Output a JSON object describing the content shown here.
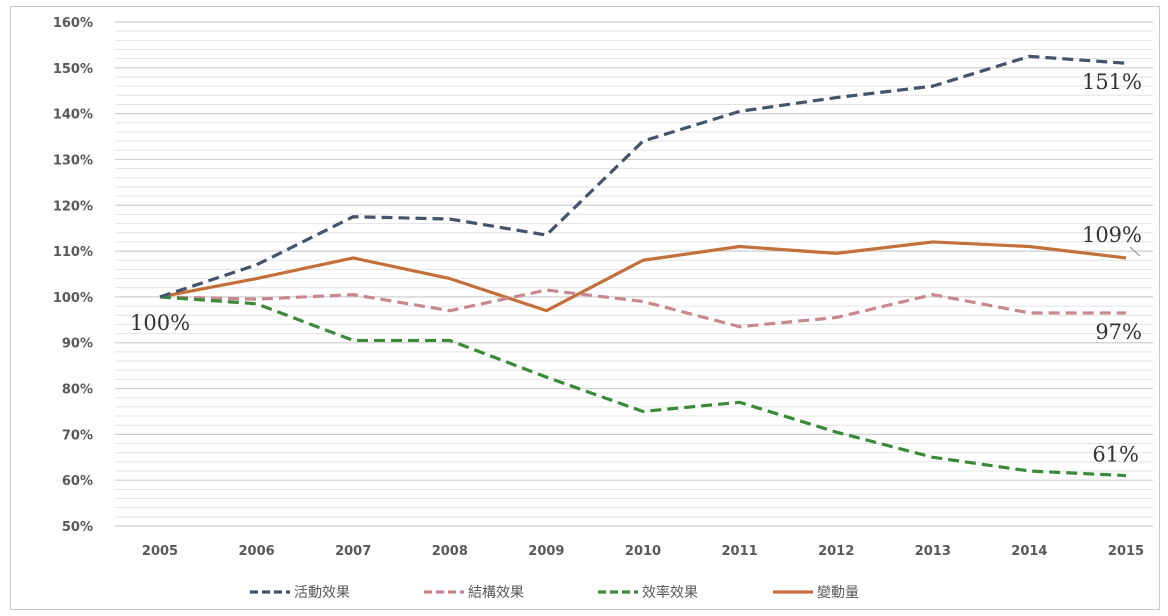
{
  "chart_data": {
    "type": "line",
    "title": "",
    "xlabel": "",
    "ylabel": "",
    "categories": [
      "2005",
      "2006",
      "2007",
      "2008",
      "2009",
      "2010",
      "2011",
      "2012",
      "2013",
      "2014",
      "2015"
    ],
    "y_ticks": [
      "50%",
      "60%",
      "70%",
      "80%",
      "90%",
      "100%",
      "110%",
      "120%",
      "130%",
      "140%",
      "150%",
      "160%"
    ],
    "ylim": [
      50,
      160
    ],
    "grid": true,
    "legend_position": "bottom",
    "series": [
      {
        "name": "活動效果",
        "color": "#44546a",
        "dash": "dashed",
        "values": [
          100,
          107,
          117.5,
          117,
          113.5,
          134,
          140.5,
          143.5,
          146,
          152.5,
          151
        ]
      },
      {
        "name": "結構效果",
        "color": "#c9888f",
        "dash": "dashed",
        "values": [
          100,
          99.5,
          100.5,
          97,
          101.5,
          99,
          93.5,
          95.5,
          100.5,
          96.5,
          96.5
        ]
      },
      {
        "name": "效率效果",
        "color": "#3a8a3a",
        "dash": "dashed",
        "values": [
          100,
          98.5,
          90.5,
          90.5,
          82.5,
          75,
          77,
          70.5,
          65,
          62,
          61
        ]
      },
      {
        "name": "變動量",
        "color": "#c4703a",
        "dash": "solid",
        "values": [
          100,
          104,
          108.5,
          104,
          97,
          108,
          111,
          109.5,
          112,
          111,
          108.5
        ]
      }
    ],
    "annotations": [
      {
        "text": "100%",
        "anchor": "start"
      },
      {
        "text": "151%",
        "anchor": "activity_end"
      },
      {
        "text": "109%",
        "anchor": "change_end"
      },
      {
        "text": "97%",
        "anchor": "structure_end"
      },
      {
        "text": "61%",
        "anchor": "efficiency_end"
      }
    ]
  }
}
